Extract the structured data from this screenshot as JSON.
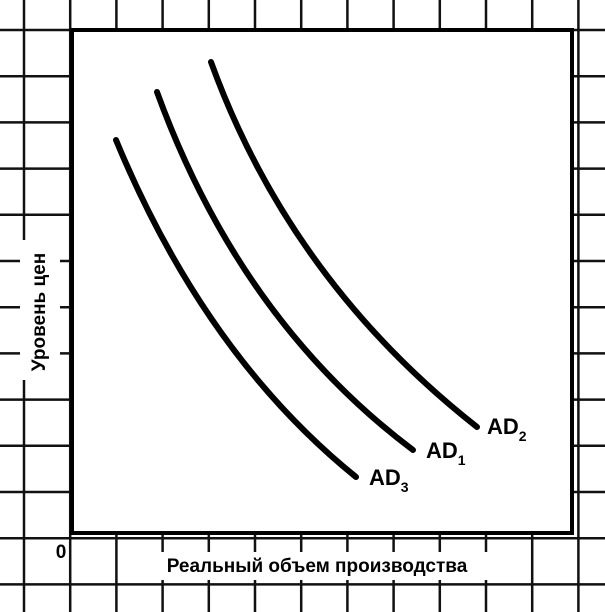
{
  "axes": {
    "y_label": "Уровень цен",
    "x_label": "Реальный объем производства",
    "origin": "0"
  },
  "curves": [
    {
      "label": "AD",
      "sub": "2"
    },
    {
      "label": "AD",
      "sub": "1"
    },
    {
      "label": "AD",
      "sub": "3"
    }
  ]
}
